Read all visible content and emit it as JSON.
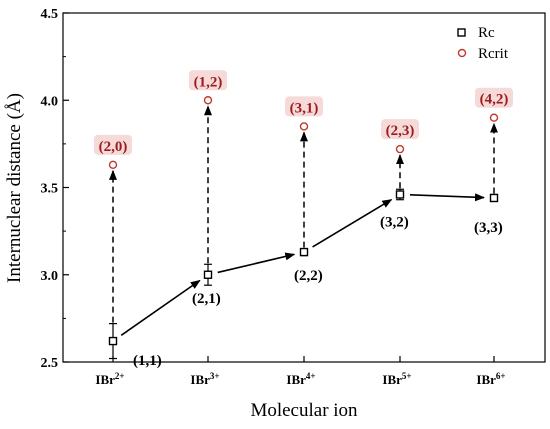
{
  "chart_data": {
    "type": "scatter",
    "xlabel": "Molecular ion",
    "ylabel": "Internuclear distance (Å)",
    "ylim": [
      2.5,
      4.5
    ],
    "yticks": [
      "2.5",
      "3.0",
      "3.5",
      "4.0",
      "4.5"
    ],
    "categories": [
      {
        "base": "IBr",
        "sup": "2+"
      },
      {
        "base": "IBr",
        "sup": "3+"
      },
      {
        "base": "IBr",
        "sup": "4+"
      },
      {
        "base": "IBr",
        "sup": "5+"
      },
      {
        "base": "IBr",
        "sup": "6+"
      }
    ],
    "series": [
      {
        "name": "Rc",
        "marker": "square",
        "color": "#000000",
        "values": [
          2.62,
          3.0,
          3.13,
          3.46,
          3.44
        ],
        "errors": [
          0.1,
          0.06,
          0.02,
          0.03,
          0.02
        ],
        "labels": [
          "(1,1)",
          "(2,1)",
          "(2,2)",
          "(3,2)",
          "(3,3)"
        ]
      },
      {
        "name": "Rcrit",
        "marker": "circle",
        "color": "#c0392b",
        "values": [
          3.63,
          4.0,
          3.85,
          3.72,
          3.9
        ],
        "labels": [
          "(2,0)",
          "(1,2)",
          "(3,1)",
          "(2,3)",
          "(4,2)"
        ]
      }
    ],
    "legend_position": "top-right",
    "label_color": "#9b1c1c",
    "label_highlight": "#f6dada"
  }
}
